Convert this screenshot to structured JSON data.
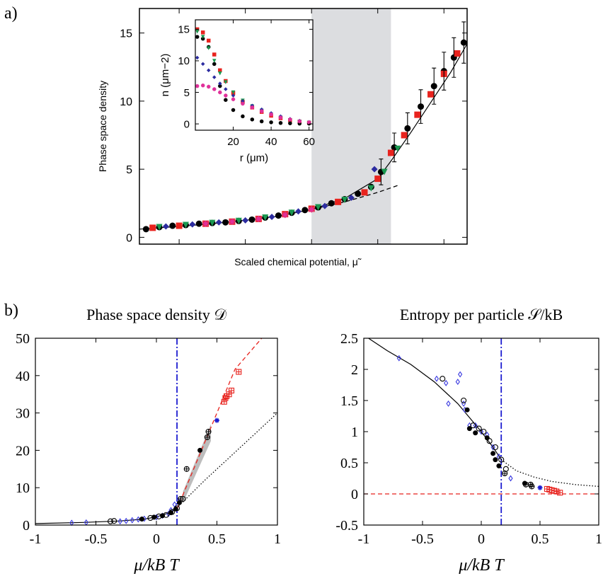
{
  "panel_labels": {
    "a": "a)",
    "b": "b)"
  },
  "chart_data": [
    {
      "id": "a-main",
      "type": "scatter",
      "title": "",
      "xlabel": "Scaled chemical potential, μ̃",
      "ylabel": "Phase space density",
      "xlim": [
        -2.6,
        2.35
      ],
      "ylim": [
        -0.5,
        16.8
      ],
      "yticks": [
        0,
        5,
        10,
        15
      ],
      "shaded_region": [
        0.0,
        1.2
      ],
      "series": [
        {
          "color": "#000000",
          "marker": "circle",
          "x": [
            -2.5,
            -2.3,
            -2.1,
            -1.9,
            -1.7,
            -1.5,
            -1.3,
            -1.1,
            -0.9,
            -0.7,
            -0.5,
            -0.3,
            -0.1,
            0.1,
            0.3,
            0.5,
            0.7,
            0.9,
            1.05,
            1.25,
            1.45,
            1.65,
            1.85,
            2.0,
            2.15,
            2.3
          ],
          "y": [
            0.6,
            0.75,
            0.85,
            0.9,
            1.0,
            1.05,
            1.1,
            1.2,
            1.3,
            1.45,
            1.6,
            1.8,
            2.0,
            2.2,
            2.5,
            2.8,
            3.2,
            3.7,
            4.8,
            6.6,
            8.0,
            9.6,
            11.1,
            12.2,
            13.2,
            14.3
          ]
        },
        {
          "color": "#e8231e",
          "marker": "square",
          "x": [
            -2.4,
            -2.0,
            -1.6,
            -1.2,
            -0.8,
            -0.4,
            0.0,
            0.4,
            0.8,
            1.0,
            1.2,
            1.4,
            1.6,
            1.8,
            2.0,
            2.2
          ],
          "y": [
            0.7,
            0.85,
            1.0,
            1.15,
            1.35,
            1.7,
            2.1,
            2.6,
            3.3,
            4.3,
            6.2,
            7.5,
            9.0,
            10.5,
            12.0,
            13.5
          ]
        },
        {
          "color": "#1a9850",
          "marker": "triangle",
          "x": [
            -2.3,
            -1.9,
            -1.5,
            -1.1,
            -0.7,
            -0.3,
            0.1,
            0.5,
            0.9,
            1.1,
            1.3
          ],
          "y": [
            0.75,
            0.9,
            1.05,
            1.2,
            1.45,
            1.8,
            2.2,
            2.75,
            3.6,
            4.8,
            6.5
          ]
        },
        {
          "color": "#2c2ca0",
          "marker": "diamond",
          "x": [
            -2.2,
            -1.8,
            -1.4,
            -1.0,
            -0.6,
            -0.2,
            0.2,
            0.6,
            0.95
          ],
          "y": [
            0.8,
            0.95,
            1.1,
            1.25,
            1.5,
            1.9,
            2.3,
            2.9,
            5.0
          ]
        },
        {
          "color": "#e0309a",
          "marker": "star",
          "x": [
            -1.6,
            -1.2,
            -0.8,
            -0.4,
            0.0
          ],
          "y": [
            1.0,
            1.15,
            1.35,
            1.65,
            2.05
          ]
        }
      ],
      "curves": [
        {
          "style": "solid",
          "color": "#000000",
          "x": [
            -2.6,
            -2.0,
            -1.5,
            -1.0,
            -0.5,
            0.0,
            0.5,
            1.0,
            1.2,
            1.5,
            1.8,
            2.1,
            2.35
          ],
          "y": [
            0.6,
            0.8,
            1.0,
            1.25,
            1.55,
            2.05,
            2.85,
            4.3,
            5.6,
            7.7,
            9.9,
            12.1,
            14.2
          ]
        },
        {
          "style": "dashed",
          "color": "#000000",
          "x": [
            0.0,
            0.5,
            1.0,
            1.3
          ],
          "y": [
            2.05,
            2.6,
            3.3,
            3.8
          ]
        }
      ],
      "inset": {
        "type": "scatter",
        "xlabel": "r (μm)",
        "ylabel": "n (μm−2)",
        "xlim": [
          0,
          62
        ],
        "ylim": [
          -1,
          16.5
        ],
        "xticks": [
          20,
          40,
          60
        ],
        "yticks": [
          0,
          5,
          10,
          15
        ],
        "series": [
          {
            "color": "#e8231e",
            "marker": "square",
            "x": [
              1,
              4,
              7,
              10,
              13,
              16,
              20,
              25,
              30,
              35,
              40,
              45,
              50,
              55,
              60
            ],
            "y": [
              15.0,
              14.5,
              13.2,
              11.0,
              8.5,
              6.8,
              4.9,
              3.5,
              2.6,
              1.9,
              1.3,
              0.9,
              0.6,
              0.35,
              0.2
            ]
          },
          {
            "color": "#000000",
            "marker": "circle",
            "x": [
              1,
              4,
              7,
              10,
              13,
              16,
              20,
              25,
              30,
              35,
              40,
              45,
              50,
              55,
              60
            ],
            "y": [
              13.8,
              13.5,
              12.2,
              9.5,
              6.0,
              3.8,
              2.2,
              1.2,
              0.7,
              0.4,
              0.25,
              0.15,
              0.1,
              0.05,
              0.05
            ]
          },
          {
            "color": "#1a9850",
            "marker": "triangle",
            "x": [
              1,
              4,
              7,
              10,
              13,
              16,
              20,
              25,
              30,
              35,
              40,
              45,
              50,
              55,
              60
            ],
            "y": [
              14.6,
              13.8,
              12.0,
              10.0,
              8.0,
              6.6,
              5.0,
              3.7,
              2.8,
              2.1,
              1.5,
              1.0,
              0.6,
              0.35,
              0.2
            ]
          },
          {
            "color": "#2c2ca0",
            "marker": "diamond",
            "x": [
              1,
              4,
              7,
              10,
              13,
              16,
              20,
              25,
              30,
              35,
              40,
              45,
              50,
              55,
              60
            ],
            "y": [
              10.5,
              9.5,
              8.5,
              7.4,
              6.4,
              5.5,
              4.5,
              3.6,
              2.9,
              2.3,
              1.7,
              1.2,
              0.8,
              0.5,
              0.3
            ]
          },
          {
            "color": "#e0309a",
            "marker": "star",
            "x": [
              1,
              4,
              7,
              10,
              13,
              16,
              20,
              25,
              30,
              35,
              40,
              45,
              50,
              55,
              60
            ],
            "y": [
              6.0,
              6.1,
              5.9,
              5.5,
              5.0,
              4.5,
              3.9,
              3.2,
              2.6,
              2.0,
              1.5,
              1.0,
              0.7,
              0.4,
              0.25
            ]
          }
        ]
      }
    },
    {
      "id": "b-left",
      "type": "scatter",
      "title": "Phase space density 𝒟",
      "xlabel": "μ/kB T",
      "ylabel": "",
      "xlim": [
        -1,
        1
      ],
      "ylim": [
        0,
        50
      ],
      "xticks": [
        -1,
        -0.5,
        0,
        0.5,
        1
      ],
      "yticks": [
        0,
        10,
        20,
        30,
        40,
        50
      ],
      "vline": 0.17,
      "series": [
        {
          "color": "#3a3ae0",
          "marker": "open-diamond",
          "x": [
            -0.7,
            -0.58,
            -0.3,
            -0.25,
            -0.2,
            -0.15,
            -0.1,
            0.0,
            0.05,
            0.1,
            0.12,
            0.15,
            0.18
          ],
          "y": [
            0.6,
            0.7,
            1.0,
            1.1,
            1.3,
            1.5,
            1.7,
            2.1,
            2.5,
            3.0,
            4.0,
            5.5,
            6.5
          ]
        },
        {
          "color": "#000000",
          "marker": "open-circle",
          "x": [
            -0.38,
            -0.35,
            -0.05,
            0.02,
            0.08,
            0.13,
            0.17,
            0.22
          ],
          "y": [
            1.0,
            1.1,
            1.9,
            2.3,
            2.7,
            3.5,
            4.5,
            7.0
          ]
        },
        {
          "color": "#000000",
          "marker": "filled-circle",
          "x": [
            -0.12,
            -0.02,
            0.05,
            0.12,
            0.16,
            0.19,
            0.36
          ],
          "y": [
            1.6,
            2.1,
            2.5,
            3.3,
            4.3,
            6.0,
            20.0
          ]
        },
        {
          "color": "#000000",
          "marker": "crossed-circle",
          "x": [
            0.2,
            0.25,
            0.42,
            0.43
          ],
          "y": [
            7.0,
            15.0,
            23.5,
            25.0
          ]
        },
        {
          "color": "#1c1cd0",
          "marker": "star",
          "x": [
            0.5
          ],
          "y": [
            28.0
          ]
        },
        {
          "color": "#e8231e",
          "marker": "crossed-square",
          "x": [
            0.56,
            0.57,
            0.58,
            0.6,
            0.62,
            0.68
          ],
          "y": [
            33.0,
            34.0,
            34.5,
            35.0,
            36.0,
            41.0
          ]
        }
      ],
      "curves": [
        {
          "style": "solid",
          "color": "#000000",
          "x": [
            -1,
            -0.6,
            -0.3,
            -0.1,
            0.0,
            0.1,
            0.17
          ],
          "y": [
            0.4,
            0.7,
            1.1,
            1.6,
            2.2,
            3.2,
            4.3
          ]
        },
        {
          "style": "dashed",
          "color": "#e8231e",
          "x": [
            0.17,
            0.35,
            0.5,
            0.65,
            0.87
          ],
          "y": [
            4.3,
            18.3,
            30.0,
            41.7,
            50.0
          ]
        },
        {
          "style": "dotted",
          "color": "#000000",
          "x": [
            0.15,
            0.4,
            0.6,
            0.8,
            1.0
          ],
          "y": [
            4.0,
            12.0,
            18.0,
            24.0,
            30.0
          ]
        }
      ],
      "band": {
        "x": [
          0.22,
          0.45
        ],
        "y_low": [
          6.0,
          22.5
        ],
        "y_high": [
          9.0,
          27.0
        ]
      }
    },
    {
      "id": "b-right",
      "type": "scatter",
      "title": "Entropy per particle 𝒮/kB",
      "xlabel": "μ/kB T",
      "ylabel": "",
      "xlim": [
        -1,
        1
      ],
      "ylim": [
        -0.5,
        2.5
      ],
      "xticks": [
        -1,
        -0.5,
        0,
        0.5,
        1
      ],
      "yticks": [
        -0.5,
        0,
        0.5,
        1,
        1.5,
        2,
        2.5
      ],
      "vline": 0.17,
      "series": [
        {
          "color": "#3a3ae0",
          "marker": "open-diamond",
          "x": [
            -0.7,
            -0.38,
            -0.3,
            -0.28,
            -0.2,
            -0.18,
            -0.15,
            -0.14,
            -0.1,
            -0.05,
            0.0,
            0.05,
            0.1,
            0.15,
            0.25
          ],
          "y": [
            2.18,
            1.85,
            1.78,
            1.45,
            1.8,
            1.92,
            1.45,
            1.35,
            1.1,
            1.1,
            1.0,
            0.95,
            0.75,
            0.6,
            0.25
          ]
        },
        {
          "color": "#000000",
          "marker": "open-circle",
          "x": [
            -0.33,
            -0.15,
            -0.07,
            -0.02,
            0.02,
            0.07,
            0.12,
            0.17,
            0.21
          ],
          "y": [
            1.85,
            1.5,
            1.1,
            1.05,
            1.0,
            0.85,
            0.75,
            0.55,
            0.4
          ]
        },
        {
          "color": "#000000",
          "marker": "filled-circle",
          "x": [
            -0.12,
            -0.1,
            -0.05,
            0.05,
            0.1,
            0.12,
            0.15,
            0.37
          ],
          "y": [
            1.35,
            1.05,
            0.98,
            0.9,
            0.65,
            0.55,
            0.45,
            0.17
          ]
        },
        {
          "color": "#000000",
          "marker": "crossed-circle",
          "x": [
            0.2,
            0.38,
            0.42,
            0.43
          ],
          "y": [
            0.33,
            0.15,
            0.15,
            0.12
          ]
        },
        {
          "color": "#1c1cd0",
          "marker": "star",
          "x": [
            0.5
          ],
          "y": [
            0.1
          ]
        },
        {
          "color": "#e8231e",
          "marker": "crossed-square",
          "x": [
            0.56,
            0.58,
            0.6,
            0.62,
            0.64,
            0.67
          ],
          "y": [
            0.08,
            0.07,
            0.06,
            0.05,
            0.04,
            0.02
          ]
        }
      ],
      "curves": [
        {
          "style": "solid",
          "color": "#000000",
          "x": [
            -1,
            -0.8,
            -0.6,
            -0.4,
            -0.2,
            0.0,
            0.1,
            0.17
          ],
          "y": [
            2.55,
            2.3,
            2.08,
            1.8,
            1.45,
            1.0,
            0.75,
            0.55
          ]
        },
        {
          "style": "dotted",
          "color": "#000000",
          "x": [
            0.17,
            0.3,
            0.45,
            0.6,
            0.8,
            1.0
          ],
          "y": [
            0.55,
            0.37,
            0.27,
            0.2,
            0.15,
            0.12
          ]
        },
        {
          "style": "dashed",
          "color": "#e8231e",
          "x": [
            -1,
            1
          ],
          "y": [
            0,
            0
          ]
        }
      ]
    }
  ]
}
